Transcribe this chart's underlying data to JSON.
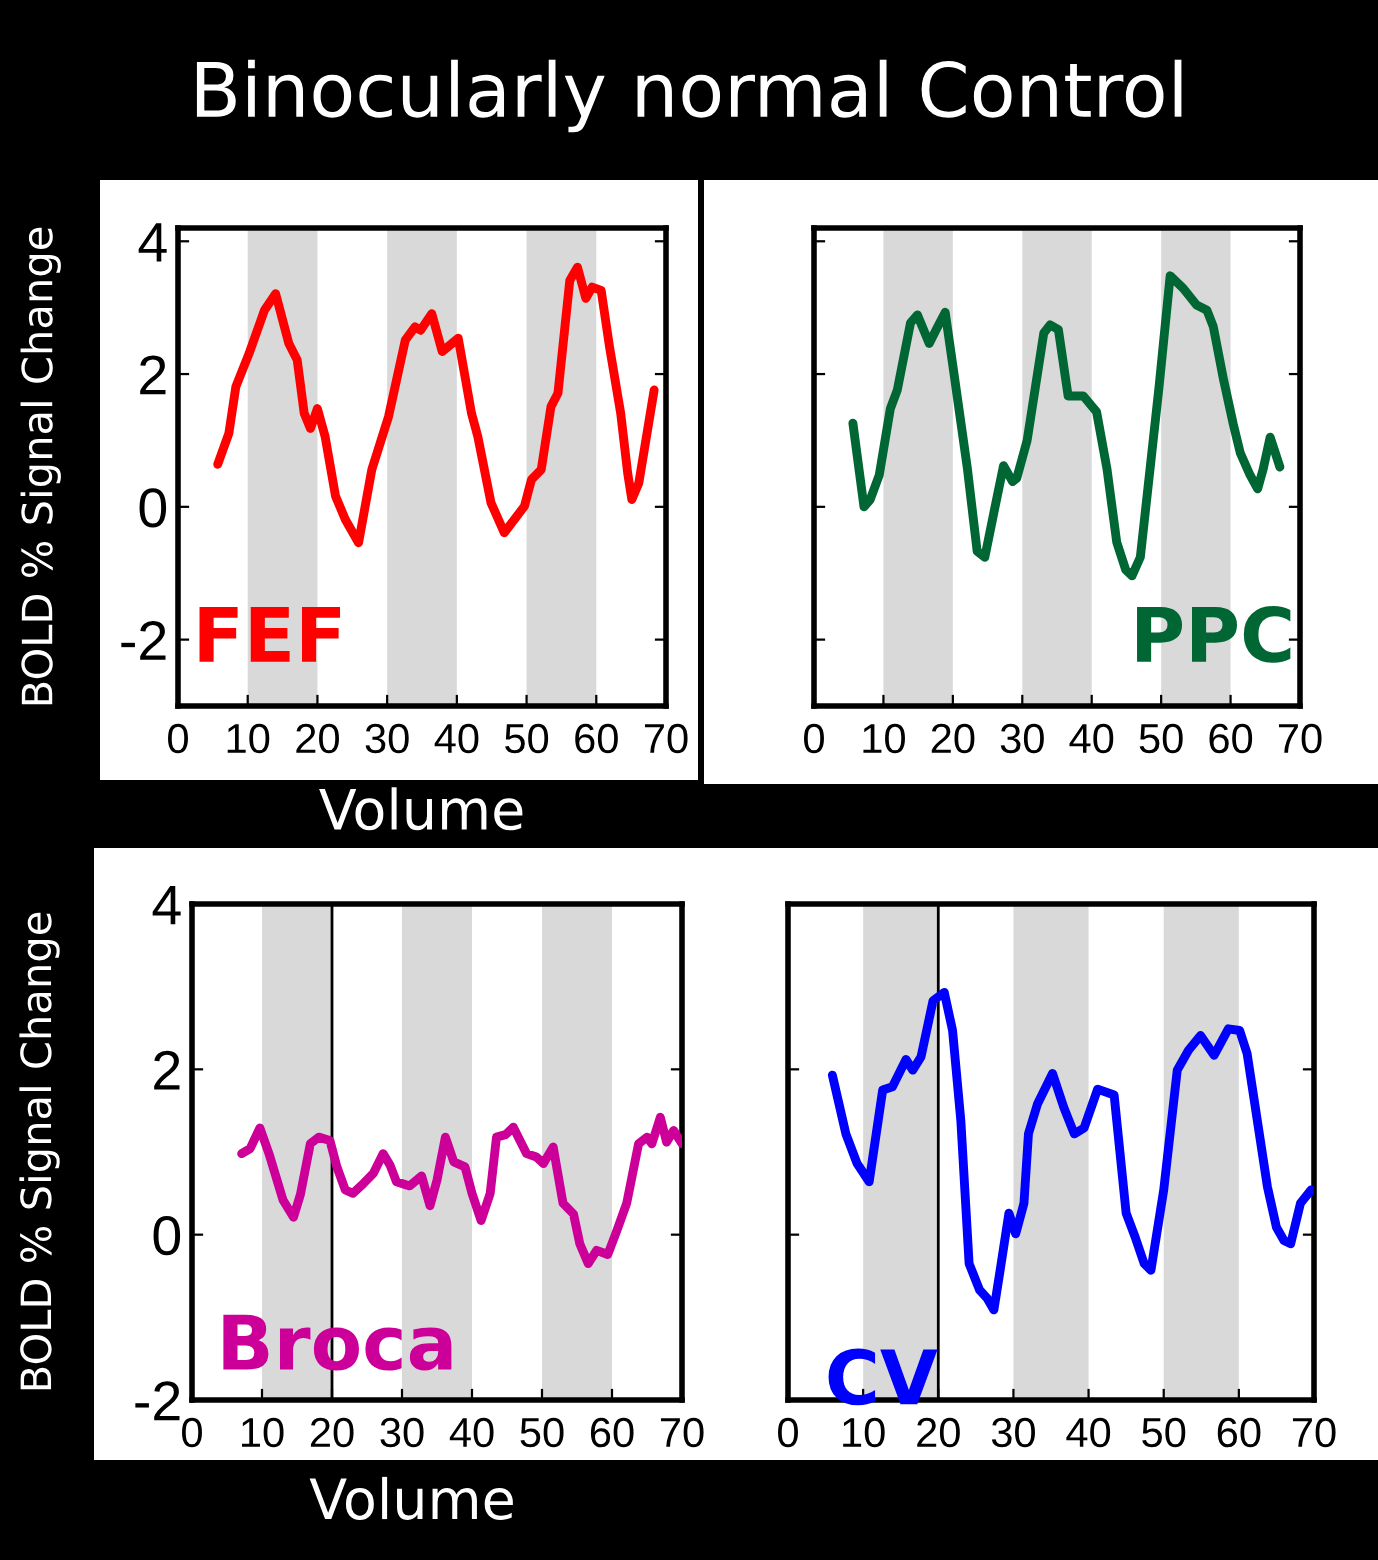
{
  "chart_data": [
    {
      "type": "line",
      "title": "Binocularly normal Control",
      "xlabel": "Volume",
      "ylabel": "BOLD % Signal Change",
      "xlim": [
        0,
        70
      ],
      "ylim": [
        -3,
        4.2
      ],
      "xticks": [
        0,
        10,
        20,
        30,
        40,
        50,
        60,
        70
      ],
      "yticks": [
        4,
        2,
        0,
        -2
      ],
      "bands": [
        {
          "axis": "x",
          "from": 10,
          "to": 20,
          "color": "#d9d9d9"
        },
        {
          "axis": "x",
          "from": 30,
          "to": 40,
          "color": "#d9d9d9"
        },
        {
          "axis": "x",
          "from": 50,
          "to": 60,
          "color": "#d9d9d9"
        }
      ],
      "series": [
        {
          "name": "FEF",
          "color": "#ff0000",
          "x": [
            5.7,
            7.3,
            8.3,
            10.2,
            12.4,
            14.0,
            15.9,
            17.1,
            18.1,
            19.0,
            20.0,
            21.1,
            22.6,
            24.0,
            25.9,
            27.8,
            30.2,
            32.6,
            34.0,
            34.8,
            36.4,
            37.9,
            40.2,
            42.1,
            43.0,
            44.9,
            46.8,
            49.7,
            50.7,
            52.1,
            53.5,
            54.5,
            56.2,
            57.3,
            58.5,
            59.4,
            60.7,
            61.9,
            63.5,
            64.5,
            65.1,
            66.1,
            68.3
          ],
          "values": [
            0.64,
            1.11,
            1.81,
            2.31,
            2.96,
            3.21,
            2.46,
            2.21,
            1.41,
            1.18,
            1.48,
            1.06,
            0.16,
            -0.19,
            -0.54,
            0.56,
            1.36,
            2.51,
            2.71,
            2.66,
            2.91,
            2.34,
            2.54,
            1.41,
            1.06,
            0.06,
            -0.39,
            0.01,
            0.41,
            0.56,
            1.51,
            1.71,
            3.41,
            3.61,
            3.14,
            3.31,
            3.26,
            2.41,
            1.41,
            0.51,
            0.11,
            0.36,
            1.76
          ]
        }
      ]
    },
    {
      "type": "line",
      "xlim": [
        0,
        70
      ],
      "ylim": [
        -3,
        4.2
      ],
      "xticks": [
        0,
        10,
        20,
        30,
        40,
        50,
        60,
        70
      ],
      "yticks": [
        {
          "value": -2,
          "label": null
        },
        {
          "value": 0,
          "label": null
        },
        {
          "value": 2,
          "label": null
        },
        {
          "value": 4,
          "label": null
        }
      ],
      "tick_labels": "x",
      "bands": [
        {
          "axis": "x",
          "from": 10,
          "to": 20,
          "color": "#d9d9d9"
        },
        {
          "axis": "x",
          "from": 30,
          "to": 40,
          "color": "#d9d9d9"
        },
        {
          "axis": "x",
          "from": 50,
          "to": 60,
          "color": "#d9d9d9"
        }
      ],
      "series": [
        {
          "name": "PPC",
          "color": "#006633",
          "x": [
            5.6,
            7.2,
            8.1,
            9.4,
            11.0,
            12.0,
            13.9,
            14.9,
            16.6,
            17.7,
            18.9,
            20.1,
            22.1,
            23.5,
            24.6,
            25.9,
            27.3,
            28.6,
            29.2,
            30.7,
            31.9,
            33.1,
            34.0,
            35.2,
            36.6,
            38.8,
            40.7,
            42.2,
            43.6,
            44.9,
            45.8,
            47.0,
            48.4,
            49.7,
            51.3,
            53.2,
            55.1,
            56.6,
            57.5,
            59.0,
            60.4,
            61.4,
            62.8,
            63.9,
            64.7,
            65.7,
            67.1
          ],
          "values": [
            1.26,
            0.0,
            0.11,
            0.48,
            1.48,
            1.76,
            2.77,
            2.89,
            2.46,
            2.69,
            2.93,
            2.05,
            0.57,
            -0.67,
            -0.76,
            -0.09,
            0.62,
            0.38,
            0.43,
            1.0,
            1.81,
            2.62,
            2.74,
            2.67,
            1.67,
            1.67,
            1.43,
            0.57,
            -0.53,
            -0.95,
            -1.04,
            -0.76,
            0.57,
            1.81,
            3.48,
            3.29,
            3.04,
            2.96,
            2.72,
            1.91,
            1.24,
            0.81,
            0.48,
            0.27,
            0.57,
            1.05,
            0.6
          ]
        }
      ]
    },
    {
      "type": "line",
      "xlabel": "Volume",
      "ylabel": "BOLD % Signal Change",
      "xlim": [
        0,
        70
      ],
      "ylim": [
        -2,
        4
      ],
      "xticks": [
        0,
        10,
        20,
        30,
        40,
        50,
        60,
        70
      ],
      "yticks": [
        4,
        2,
        0,
        -2
      ],
      "bands": [
        {
          "axis": "x",
          "from": 10,
          "to": 20,
          "color": "#d9d9d9"
        },
        {
          "axis": "x",
          "from": 30,
          "to": 40,
          "color": "#d9d9d9"
        },
        {
          "axis": "x",
          "from": 50,
          "to": 60,
          "color": "#d9d9d9"
        }
      ],
      "ref_lines": [
        {
          "axis": "x",
          "value": 20,
          "color": "#000000"
        }
      ],
      "series": [
        {
          "name": "Broca",
          "color": "#cc0099",
          "x": [
            7.1,
            8.3,
            9.7,
            11.0,
            13.0,
            14.5,
            15.5,
            16.9,
            18.1,
            19.7,
            20.7,
            21.9,
            23.0,
            24.5,
            25.9,
            27.3,
            28.3,
            29.2,
            31.1,
            32.8,
            34.0,
            35.0,
            36.2,
            37.4,
            39.0,
            40.0,
            41.3,
            42.6,
            43.5,
            44.8,
            45.9,
            47.8,
            49.2,
            50.2,
            51.6,
            53.0,
            54.5,
            55.4,
            56.6,
            57.8,
            59.4,
            60.7,
            62.1,
            63.8,
            65.0,
            65.7,
            66.9,
            67.8,
            68.8,
            70
          ],
          "values": [
            0.98,
            1.04,
            1.29,
            0.98,
            0.42,
            0.21,
            0.49,
            1.1,
            1.18,
            1.14,
            0.82,
            0.54,
            0.5,
            0.62,
            0.74,
            0.98,
            0.84,
            0.64,
            0.59,
            0.71,
            0.35,
            0.66,
            1.18,
            0.88,
            0.82,
            0.5,
            0.17,
            0.5,
            1.18,
            1.21,
            1.3,
            0.98,
            0.94,
            0.86,
            1.06,
            0.38,
            0.25,
            -0.11,
            -0.35,
            -0.19,
            -0.24,
            0.05,
            0.38,
            1.1,
            1.18,
            1.1,
            1.42,
            1.12,
            1.26,
            1.1
          ]
        }
      ]
    },
    {
      "type": "line",
      "xlim": [
        0,
        70
      ],
      "ylim": [
        -2,
        4
      ],
      "xticks": [
        0,
        10,
        20,
        30,
        40,
        50,
        60,
        70
      ],
      "yticks": [
        {
          "value": 0,
          "label": null
        },
        {
          "value": 2,
          "label": null
        }
      ],
      "tick_labels": "x",
      "bands": [
        {
          "axis": "x",
          "from": 10,
          "to": 20,
          "color": "#d9d9d9"
        },
        {
          "axis": "x",
          "from": 30,
          "to": 40,
          "color": "#d9d9d9"
        },
        {
          "axis": "x",
          "from": 50,
          "to": 60,
          "color": "#d9d9d9"
        }
      ],
      "ref_lines": [
        {
          "axis": "x",
          "value": 20,
          "color": "#000000"
        }
      ],
      "series": [
        {
          "name": "CV",
          "color": "#0000ff",
          "x": [
            5.9,
            7.7,
            9.2,
            10.8,
            12.6,
            13.9,
            15.7,
            16.6,
            17.7,
            19.3,
            20.8,
            21.9,
            23.0,
            24.1,
            25.5,
            26.5,
            27.4,
            28.3,
            29.4,
            30.3,
            31.4,
            32.0,
            33.2,
            35.2,
            36.7,
            38.1,
            39.4,
            41.2,
            43.4,
            45.0,
            46.2,
            47.4,
            48.3,
            50.0,
            51.8,
            53.3,
            54.9,
            56.7,
            58.6,
            60.1,
            61.1,
            63.8,
            65.0,
            66.0,
            66.9,
            68.2,
            69.6
          ],
          "values": [
            1.93,
            1.22,
            0.86,
            0.64,
            1.75,
            1.79,
            2.12,
            1.99,
            2.15,
            2.83,
            2.93,
            2.47,
            1.38,
            -0.35,
            -0.67,
            -0.77,
            -0.91,
            -0.39,
            0.26,
            0.01,
            0.38,
            1.22,
            1.58,
            1.95,
            1.54,
            1.22,
            1.29,
            1.76,
            1.69,
            0.26,
            -0.03,
            -0.35,
            -0.43,
            0.54,
            1.99,
            2.23,
            2.41,
            2.17,
            2.49,
            2.47,
            2.19,
            0.58,
            0.09,
            -0.07,
            -0.11,
            0.38,
            0.54
          ]
        }
      ]
    }
  ]
}
